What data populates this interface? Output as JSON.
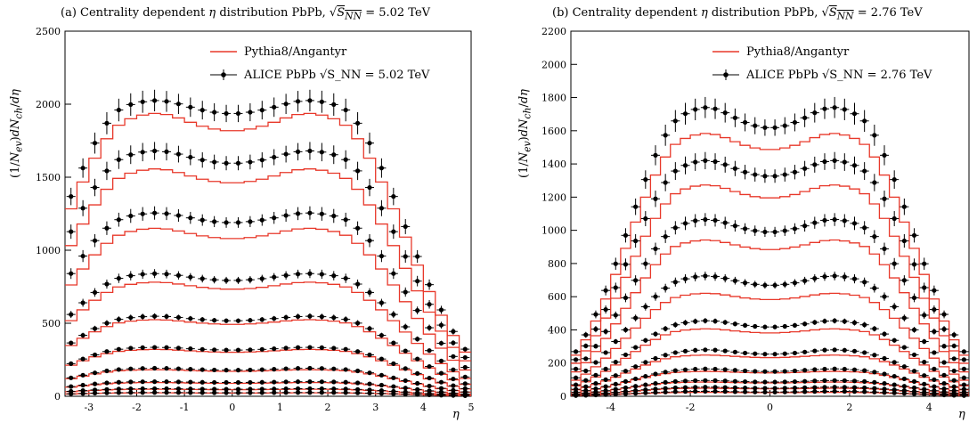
{
  "figure": {
    "colors": {
      "sim": "#e8382a",
      "data": "#000000",
      "axis": "#000000"
    }
  },
  "chart_data": [
    {
      "type": "line",
      "title": "(a) Centrality dependent η distribution PbPb, √S_NN = 5.02 TeV",
      "title_parts": {
        "prefix": "(a) Centrality dependent",
        "eta": "η",
        "middle": "distribution PbPb,",
        "s": "S",
        "nn": "NN",
        "energy": "= 5.02 TeV"
      },
      "ylabel": "(1/N_ev) dN_ch/dη",
      "xlabel": "η",
      "xlim": [
        -3.5,
        5.0
      ],
      "ylim": [
        0,
        2500
      ],
      "xticks": [
        -3,
        -2,
        -1,
        0,
        1,
        2,
        3,
        4,
        5
      ],
      "xtick_labels": [
        "-3",
        "-2",
        "-1",
        "0",
        "1",
        "2",
        "3",
        "4",
        "5"
      ],
      "yticks": [
        0,
        500,
        1000,
        1500,
        2000,
        2500
      ],
      "ytick_labels": [
        "0",
        "500",
        "1000",
        "1500",
        "2000",
        "2500"
      ],
      "legend": {
        "position": "top-center",
        "entries": [
          "Pythia8/Angantyr",
          "ALICE PbPb √S_NN = 5.02 TeV"
        ],
        "energy": "= 5.02 TeV"
      },
      "eta_range": [
        -3.5,
        5.0
      ],
      "bin_width": 0.25,
      "series": [
        {
          "sim_center": 1810,
          "data_center": 1930,
          "data_peak": 2025
        },
        {
          "sim_center": 1455,
          "data_center": 1590,
          "data_peak": 1680
        },
        {
          "sim_center": 1075,
          "data_center": 1185,
          "data_peak": 1255
        },
        {
          "sim_center": 730,
          "data_center": 790,
          "data_peak": 840
        },
        {
          "sim_center": 490,
          "data_center": 515,
          "data_peak": 548
        },
        {
          "sim_center": 300,
          "data_center": 315,
          "data_peak": 335
        },
        {
          "sim_center": 170,
          "data_center": 178,
          "data_peak": 192
        },
        {
          "sim_center": 88,
          "data_center": 94,
          "data_peak": 100
        },
        {
          "sim_center": 45,
          "data_center": 48,
          "data_peak": 52
        },
        {
          "sim_center": 22,
          "data_center": 24,
          "data_peak": 26
        }
      ]
    },
    {
      "type": "line",
      "title": "(b) Centrality dependent η distribution PbPb, √S_NN = 2.76 TeV",
      "title_parts": {
        "prefix": "(b) Centrality dependent",
        "eta": "η",
        "middle": "distribution PbPb,",
        "s": "S",
        "nn": "NN",
        "energy": "= 2.76 TeV"
      },
      "ylabel": "(1/N_ev) dN_ch/dη",
      "xlabel": "η",
      "xlim": [
        -5.0,
        5.0
      ],
      "ylim": [
        0,
        2200
      ],
      "xticks": [
        -4,
        -2,
        0,
        2,
        4
      ],
      "xtick_labels": [
        "-4",
        "-2",
        "0",
        "2",
        "4"
      ],
      "yticks": [
        0,
        200,
        400,
        600,
        800,
        1000,
        1200,
        1400,
        1600,
        1800,
        2000,
        2200
      ],
      "ytick_labels": [
        "0",
        "200",
        "400",
        "600",
        "800",
        "1000",
        "1200",
        "1400",
        "1600",
        "1800",
        "2000",
        "2200"
      ],
      "legend": {
        "position": "top-right",
        "entries": [
          "Pythia8/Angantyr",
          "ALICE PbPb √S_NN = 2.76 TeV"
        ],
        "energy": "= 2.76 TeV"
      },
      "eta_range": [
        -5.0,
        5.0
      ],
      "bin_width": 0.25,
      "series": [
        {
          "sim_center": 1480,
          "data_center": 1610,
          "data_peak": 1740
        },
        {
          "sim_center": 1190,
          "data_center": 1320,
          "data_peak": 1420
        },
        {
          "sim_center": 880,
          "data_center": 985,
          "data_peak": 1065
        },
        {
          "sim_center": 580,
          "data_center": 665,
          "data_peak": 725
        },
        {
          "sim_center": 380,
          "data_center": 415,
          "data_peak": 455
        },
        {
          "sim_center": 232,
          "data_center": 252,
          "data_peak": 280
        },
        {
          "sim_center": 140,
          "data_center": 148,
          "data_peak": 165
        },
        {
          "sim_center": 80,
          "data_center": 85,
          "data_peak": 95
        },
        {
          "sim_center": 45,
          "data_center": 48,
          "data_peak": 55
        },
        {
          "sim_center": 22,
          "data_center": 25,
          "data_peak": 30
        }
      ]
    }
  ]
}
